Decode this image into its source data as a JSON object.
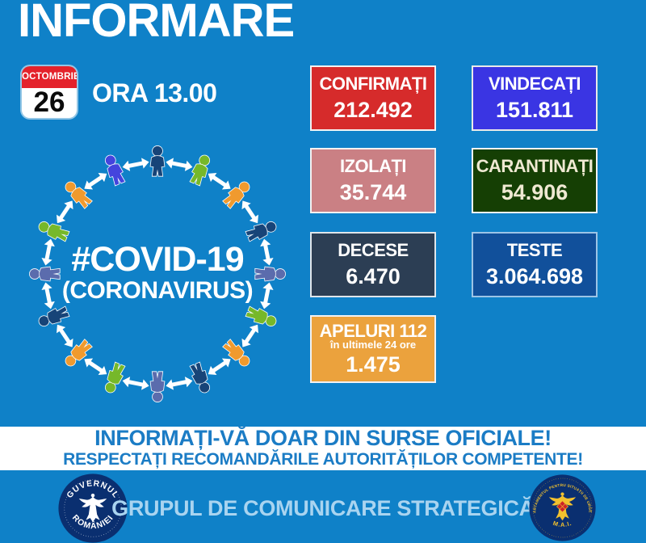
{
  "header": {
    "title": "INFORMARE",
    "calendar": {
      "month": "OCTOMBRIE",
      "day": "26"
    },
    "time": "ORA 13.00"
  },
  "diagram": {
    "hashtag": "#COVID-19",
    "subtitle": "(CORONAVIRUS)",
    "arrow_color": "#ffffff",
    "people_colors": [
      "#174478",
      "#76b82a",
      "#f09a2e",
      "#174478",
      "#5b6cad",
      "#76b82a",
      "#f09a2e",
      "#174478",
      "#5b6cad",
      "#76b82a",
      "#f09a2e",
      "#174478",
      "#5b6cad",
      "#76b82a",
      "#f09a2e",
      "#4444dd"
    ]
  },
  "stats": [
    {
      "id": "confirmati",
      "label": "CONFIRMAȚI",
      "value": "212.492",
      "bg": "#d62b2b",
      "border": "#f2f2f2",
      "text": "#ffffff"
    },
    {
      "id": "vindecati",
      "label": "VINDECAȚI",
      "value": "151.811",
      "bg": "#3a35e3",
      "border": "#e9e9e9",
      "text": "#ffffff"
    },
    {
      "id": "izolati",
      "label": "IZOLAȚI",
      "value": "35.744",
      "bg": "#ca8084",
      "border": "#f2f2f2",
      "text": "#ffffff"
    },
    {
      "id": "carantinati",
      "label": "CARANTINAȚI",
      "value": "54.906",
      "bg": "#153f04",
      "border": "#f2f2f2",
      "text": "#efe9d2"
    },
    {
      "id": "decese",
      "label": "DECESE",
      "value": "6.470",
      "bg": "#2c3e54",
      "border": "#dfe5ea",
      "text": "#ffffff"
    },
    {
      "id": "teste",
      "label": "TESTE",
      "value": "3.064.698",
      "bg": "#11509b",
      "border": "#9cc4e6",
      "text": "#ffffff"
    },
    {
      "id": "apeluri",
      "label": "APELURI 112",
      "sublabel": "în ultimele 24 ore",
      "value": "1.475",
      "bg": "#eba23d",
      "border": "#f2f2f2",
      "text": "#ffffff"
    }
  ],
  "banner": {
    "line1": "INFORMAȚI-VĂ DOAR DIN SURSE OFICIALE!",
    "line2": "RESPECTAȚI RECOMANDĂRILE AUTORITĂȚILOR COMPETENTE!",
    "bg": "#ffffff",
    "text_color": "#1b7cc5"
  },
  "footer": {
    "group_label": "GRUPUL DE COMUNICARE STRATEGICĂ",
    "text_color": "#a9d4f0",
    "left_logo": {
      "top": "GUVERNUL",
      "bottom": "ROMÂNIEI"
    },
    "right_logo": {
      "top": "DEPARTAMENTUL PENTRU SITUAȚII DE URGENȚĂ",
      "bottom": "M.A.I."
    }
  },
  "theme": {
    "background": "#0f81c8",
    "calendar_red": "#e4222b",
    "logo_navy": "#0a2f70",
    "logo_gold": "#f2c12e",
    "shield_red": "#cc2229"
  }
}
